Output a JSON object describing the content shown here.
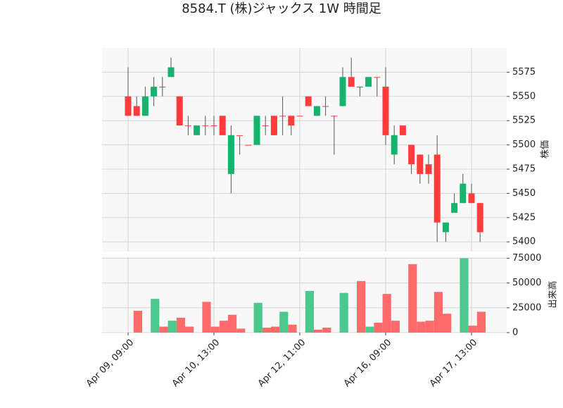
{
  "chart_data": {
    "type": "candlestick",
    "title": "8584.T (株)ジャックス 1W 時間足",
    "categories": [
      "Apr 09, 09:00",
      null,
      null,
      null,
      null,
      null,
      null,
      null,
      null,
      null,
      "Apr 10, 13:00",
      null,
      null,
      null,
      null,
      null,
      null,
      null,
      null,
      null,
      "Apr 12, 11:00",
      null,
      null,
      null,
      null,
      null,
      null,
      null,
      null,
      null,
      "Apr 16, 09:00",
      null,
      null,
      null,
      null,
      null,
      null,
      null,
      null,
      null,
      "Apr 17, 13:00",
      null
    ],
    "open": [
      5550,
      5540,
      5530,
      5550,
      5560,
      5570,
      5550,
      5520,
      5510,
      5520,
      5520,
      5530,
      5470,
      5510,
      5500,
      5500,
      5520,
      5530,
      5530,
      5530,
      5530,
      5550,
      5530,
      5540,
      5530,
      5540,
      5570,
      5560,
      5560,
      5570,
      5560,
      5490,
      5520,
      5500,
      5490,
      5480,
      5490,
      5410,
      5430,
      5440,
      5450,
      5440
    ],
    "high": [
      5580,
      5550,
      5560,
      5570,
      5570,
      5590,
      5550,
      5530,
      5520,
      5530,
      5530,
      5530,
      5520,
      5510,
      5500,
      5530,
      5530,
      5530,
      5550,
      5530,
      5530,
      5550,
      5540,
      5550,
      5530,
      5580,
      5590,
      5560,
      5570,
      5570,
      5580,
      5520,
      5520,
      5500,
      5490,
      5490,
      5510,
      5420,
      5450,
      5470,
      5460,
      5440
    ],
    "low": [
      5530,
      5530,
      5530,
      5540,
      5550,
      5570,
      5520,
      5510,
      5510,
      5510,
      5510,
      5510,
      5450,
      5490,
      5500,
      5500,
      5510,
      5510,
      5510,
      5510,
      5530,
      5540,
      5530,
      5530,
      5490,
      5540,
      5560,
      5550,
      5560,
      5550,
      5500,
      5480,
      5510,
      5470,
      5460,
      5460,
      5400,
      5400,
      5430,
      5440,
      5440,
      5400
    ],
    "close": [
      5530,
      5530,
      5550,
      5560,
      5560,
      5580,
      5520,
      5520,
      5520,
      5520,
      5520,
      5510,
      5510,
      5510,
      5500,
      5530,
      5520,
      5510,
      5530,
      5520,
      5530,
      5540,
      5540,
      5540,
      5530,
      5570,
      5560,
      5560,
      5570,
      5570,
      5510,
      5510,
      5510,
      5480,
      5470,
      5470,
      5420,
      5420,
      5440,
      5460,
      5440,
      5410
    ],
    "up_color": "#16b26e",
    "down_color": "#ff3b3b",
    "ylabel": "株価",
    "ylim": [
      5390,
      5600
    ],
    "yticks": [
      5400,
      5425,
      5450,
      5475,
      5500,
      5525,
      5550,
      5575
    ],
    "grid": true,
    "volume": {
      "label": "出来高",
      "values": [
        0,
        22000,
        0,
        34000,
        6000,
        12000,
        15000,
        6000,
        0,
        31000,
        6000,
        12000,
        18000,
        4000,
        0,
        30000,
        5000,
        6000,
        21000,
        8000,
        0,
        42000,
        3000,
        5000,
        0,
        40000,
        0,
        52000,
        6000,
        10000,
        39000,
        12000,
        0,
        69000,
        11000,
        12000,
        41000,
        19000,
        0,
        75000,
        7000,
        21000
      ],
      "colors": [
        "down",
        "down",
        "up",
        "up",
        "down",
        "up",
        "down",
        "down",
        "down",
        "down",
        "down",
        "down",
        "down",
        "down",
        "down",
        "up",
        "down",
        "down",
        "up",
        "down",
        "down",
        "up",
        "down",
        "down",
        "down",
        "up",
        "down",
        "down",
        "up",
        "down",
        "down",
        "down",
        "down",
        "down",
        "down",
        "down",
        "down",
        "down",
        "down",
        "up",
        "down",
        "down"
      ],
      "up_color": "#4cc88f",
      "down_color": "#ff6b6b",
      "ylim": [
        0,
        76000
      ],
      "yticks": [
        0,
        25000,
        50000,
        75000
      ]
    }
  }
}
